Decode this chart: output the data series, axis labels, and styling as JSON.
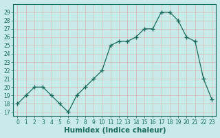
{
  "x": [
    0,
    1,
    2,
    3,
    4,
    5,
    6,
    7,
    8,
    9,
    10,
    11,
    12,
    13,
    14,
    15,
    16,
    17,
    18,
    19,
    20,
    21,
    22,
    23
  ],
  "y": [
    18,
    19,
    20,
    20,
    19,
    18,
    17,
    19,
    20,
    21,
    22,
    25,
    25.5,
    25.5,
    26,
    27,
    27,
    29,
    29,
    28,
    26,
    25.5,
    21,
    18.5
  ],
  "xlabel": "Humidex (Indice chaleur)",
  "xlim": [
    -0.5,
    23.5
  ],
  "ylim": [
    16.5,
    30
  ],
  "yticks": [
    17,
    18,
    19,
    20,
    21,
    22,
    23,
    24,
    25,
    26,
    27,
    28,
    29
  ],
  "xticks": [
    0,
    1,
    2,
    3,
    4,
    5,
    6,
    7,
    8,
    9,
    10,
    11,
    12,
    13,
    14,
    15,
    16,
    17,
    18,
    19,
    20,
    21,
    22,
    23
  ],
  "line_color": "#1a6b5a",
  "marker_color": "#1a6b5a",
  "bg_color": "#c8eae8",
  "grid_color": "#b8d8d4",
  "axis_color": "#1a6b5a",
  "tick_label_fontsize": 5.5,
  "xlabel_fontsize": 7.5
}
